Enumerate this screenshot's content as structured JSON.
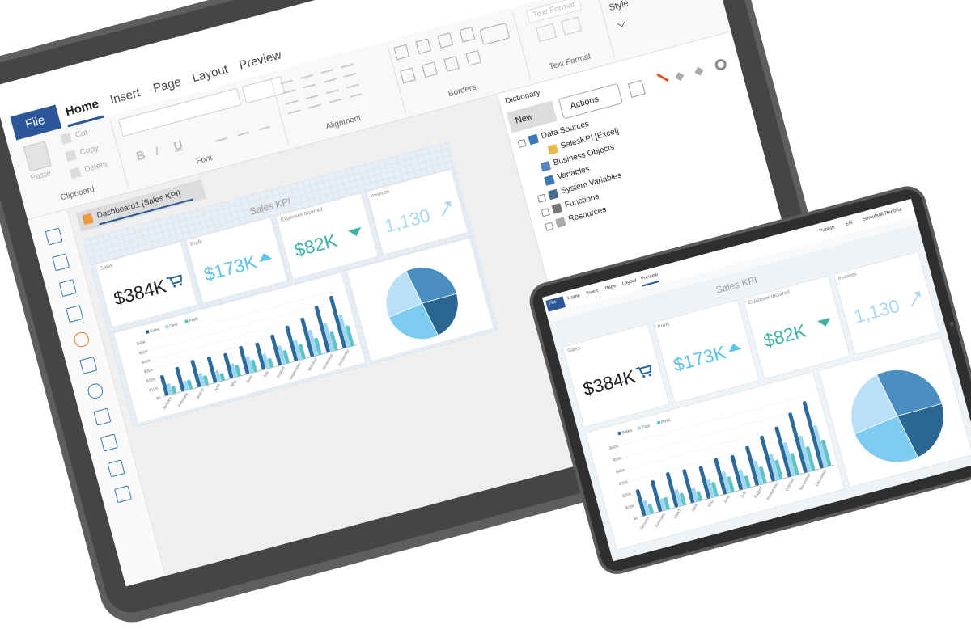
{
  "laptop": {
    "ribbon": {
      "tabs": [
        "File",
        "Home",
        "Insert",
        "Page",
        "Layout",
        "Preview"
      ],
      "clipboard_buttons": [
        "Paste",
        "Cut",
        "Copy",
        "Delete"
      ],
      "font_buttons": [
        "B",
        "I",
        "U"
      ],
      "text_format_box": "Text Format",
      "group_labels": [
        "Clipboard",
        "Font",
        "Alignment",
        "Borders",
        "Text Format",
        "Style"
      ]
    },
    "dictionary": {
      "title": "Dictionary",
      "buttons": [
        "New",
        "Actions"
      ],
      "tree": [
        "Data Sources",
        "SalesKPI [Excel]",
        "Business Objects",
        "Variables",
        "System Variables",
        "Functions",
        "Resources"
      ]
    },
    "document_tab": "Dashboard1 [Sales KPI]"
  },
  "tablet": {
    "tabs": [
      "File",
      "Home",
      "Insert",
      "Page",
      "Layout",
      "Preview"
    ],
    "toolbar": [
      "Publish",
      "EN",
      "Stimulsoft Reports"
    ]
  },
  "dashboard": {
    "title": "Sales KPI",
    "kpis": [
      {
        "label": "Sales",
        "value": "$384K",
        "color": "#1e1e1e"
      },
      {
        "label": "Profit",
        "value": "$173K",
        "color": "#5cc3ec"
      },
      {
        "label": "Expenses Incurred",
        "value": "$82K",
        "color": "#3db3a6"
      },
      {
        "label": "Invoices",
        "value": "1,130",
        "color": "#a9d8f2"
      }
    ]
  },
  "chart_data": [
    {
      "type": "bar",
      "categories": [
        "January",
        "February",
        "March",
        "April",
        "May",
        "June",
        "July",
        "August",
        "September",
        "October",
        "November",
        "December"
      ],
      "series": [
        {
          "name": "Sales",
          "color": "#2c6a9c",
          "values": [
            22,
            26,
            29,
            28,
            27,
            30,
            29,
            33,
            38,
            42,
            50,
            56
          ]
        },
        {
          "name": "Cost",
          "color": "#9fd6f4",
          "values": [
            12,
            10,
            14,
            12,
            15,
            18,
            16,
            20,
            22,
            28,
            30,
            35
          ]
        },
        {
          "name": "Profit",
          "color": "#62c3c6",
          "values": [
            8,
            10,
            10,
            8,
            12,
            13,
            10,
            14,
            16,
            18,
            20,
            22
          ]
        }
      ],
      "ylim": [
        0,
        60
      ],
      "yticks": [
        {
          "value": 0,
          "label": "$0"
        },
        {
          "value": 10,
          "label": "$10K"
        },
        {
          "value": 20,
          "label": "$20K"
        },
        {
          "value": 30,
          "label": "$30K"
        },
        {
          "value": 40,
          "label": "$40K"
        },
        {
          "value": 50,
          "label": "$50K"
        },
        {
          "value": 60,
          "label": "$60K"
        }
      ],
      "grid": true
    },
    {
      "type": "pie",
      "values": [
        28,
        22,
        26,
        24
      ],
      "colors": [
        "#4a8ec0",
        "#2b6693",
        "#7dcbf1",
        "#b9e0f6"
      ]
    }
  ]
}
